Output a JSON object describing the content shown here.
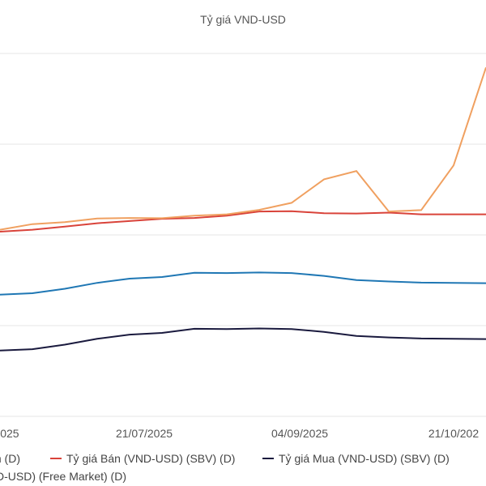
{
  "chart_data": {
    "type": "line",
    "title": "Tỷ giá VND-USD",
    "x_tick_labels": [
      "2025",
      "21/07/2025",
      "04/09/2025",
      "21/10/202"
    ],
    "legend": [
      {
        "label": "m (D)",
        "color": "#1f77b4"
      },
      {
        "label": "Tỷ giá Bán (VND-USD) (SBV) (D)",
        "color": "#d9433a"
      },
      {
        "label": "Tỷ giá Mua (VND-USD) (SBV) (D)",
        "color": "#1a1a3e"
      },
      {
        "label": "D-USD) (Free Market) (D)",
        "color": "#f0a060"
      }
    ],
    "x_dates": [
      "2025-06-04",
      "2025-06-14",
      "2025-06-24",
      "2025-07-04",
      "2025-07-14",
      "2025-07-24",
      "2025-08-03",
      "2025-08-13",
      "2025-08-23",
      "2025-09-02",
      "2025-09-12",
      "2025-09-22",
      "2025-10-02",
      "2025-10-12",
      "2025-10-22",
      "2025-10-31"
    ],
    "series": [
      {
        "name": "Tỷ giá Bán (VND-USD) (SBV) (D)",
        "color": "#d9433a",
        "values": [
          0.663,
          0.67,
          0.681,
          0.693,
          0.701,
          0.709,
          0.712,
          0.72,
          0.735,
          0.736,
          0.729,
          0.728,
          0.731,
          0.725,
          0.725,
          0.725
        ]
      },
      {
        "name": "Tỷ giá Mua (VND-USD) (SBV) (D)",
        "color": "#1a1a3e",
        "values": [
          0.238,
          0.243,
          0.259,
          0.28,
          0.295,
          0.301,
          0.316,
          0.315,
          0.317,
          0.315,
          0.305,
          0.29,
          0.285,
          0.281,
          0.28,
          0.279
        ]
      },
      {
        "name": "D-USD) (Free Market) (D)",
        "color": "#f0a060",
        "values": [
          0.67,
          0.69,
          0.697,
          0.71,
          0.712,
          0.711,
          0.72,
          0.725,
          0.741,
          0.766,
          0.85,
          0.88,
          0.735,
          0.74,
          0.9,
          1.25
        ]
      },
      {
        "name": "m (D)",
        "color": "#1f77b4",
        "values": [
          0.438,
          0.443,
          0.459,
          0.48,
          0.495,
          0.501,
          0.516,
          0.515,
          0.517,
          0.515,
          0.505,
          0.49,
          0.485,
          0.481,
          0.48,
          0.479
        ]
      }
    ],
    "grid": true,
    "legend_position": "bottom"
  }
}
